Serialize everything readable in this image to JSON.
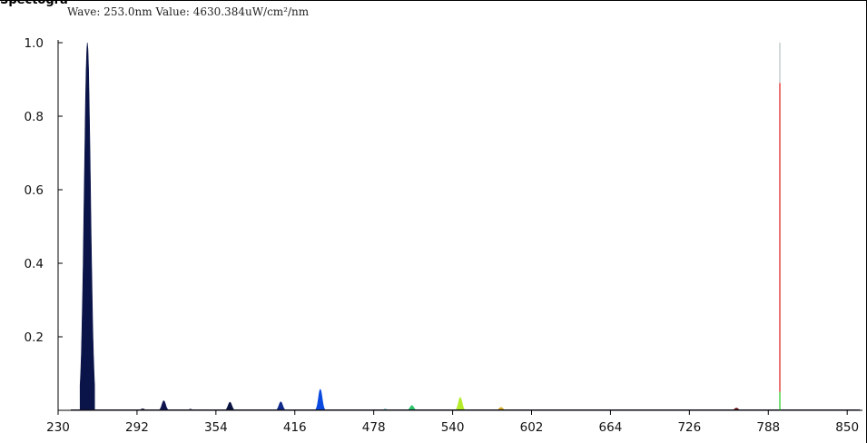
{
  "header": {
    "partial_title": "Spectogra",
    "readout": "Wave: 253.0nm Value: 4630.384uW/cm²/nm"
  },
  "chart_data": {
    "type": "area",
    "title": "",
    "xlabel": "",
    "ylabel": "",
    "xlim": [
      230,
      862
    ],
    "ylim": [
      0,
      1.0
    ],
    "x_ticks": [
      230,
      292,
      354,
      416,
      478,
      540,
      602,
      664,
      726,
      788,
      850
    ],
    "y_ticks": [
      0.2,
      0.4,
      0.6,
      0.8,
      1.0
    ],
    "y_tick_labels": [
      "0.2",
      "0.4",
      "0.6",
      "0.8",
      "1.0"
    ],
    "grid": false,
    "cursor_wave_nm": 253.0,
    "cursor_value_uW_cm2_nm": 4630.384,
    "peaks": [
      {
        "x": 253.0,
        "y": 1.0,
        "color": "#0b1448"
      },
      {
        "x": 296.5,
        "y": 0.004,
        "color": "#120a2a"
      },
      {
        "x": 313.0,
        "y": 0.026,
        "color": "#0f1450"
      },
      {
        "x": 334.0,
        "y": 0.003,
        "color": "#101030"
      },
      {
        "x": 365.0,
        "y": 0.022,
        "color": "#0b1440"
      },
      {
        "x": 405.0,
        "y": 0.023,
        "color": "#102a8a"
      },
      {
        "x": 436.0,
        "y": 0.057,
        "color": "#0a4ae0"
      },
      {
        "x": 487.0,
        "y": 0.003,
        "color": "#1a9a8a"
      },
      {
        "x": 508.0,
        "y": 0.013,
        "color": "#2cc46a"
      },
      {
        "x": 546.0,
        "y": 0.035,
        "color": "#b4ec2a"
      },
      {
        "x": 578.0,
        "y": 0.008,
        "color": "#d6a820"
      },
      {
        "x": 763.0,
        "y": 0.006,
        "color": "#6a0a0a"
      }
    ],
    "cursor_line": {
      "x": 859,
      "ymax": 1.0,
      "color_upper": "#b8c0c0",
      "color_mid": "#e01818",
      "color_low": "#22cc22"
    }
  }
}
